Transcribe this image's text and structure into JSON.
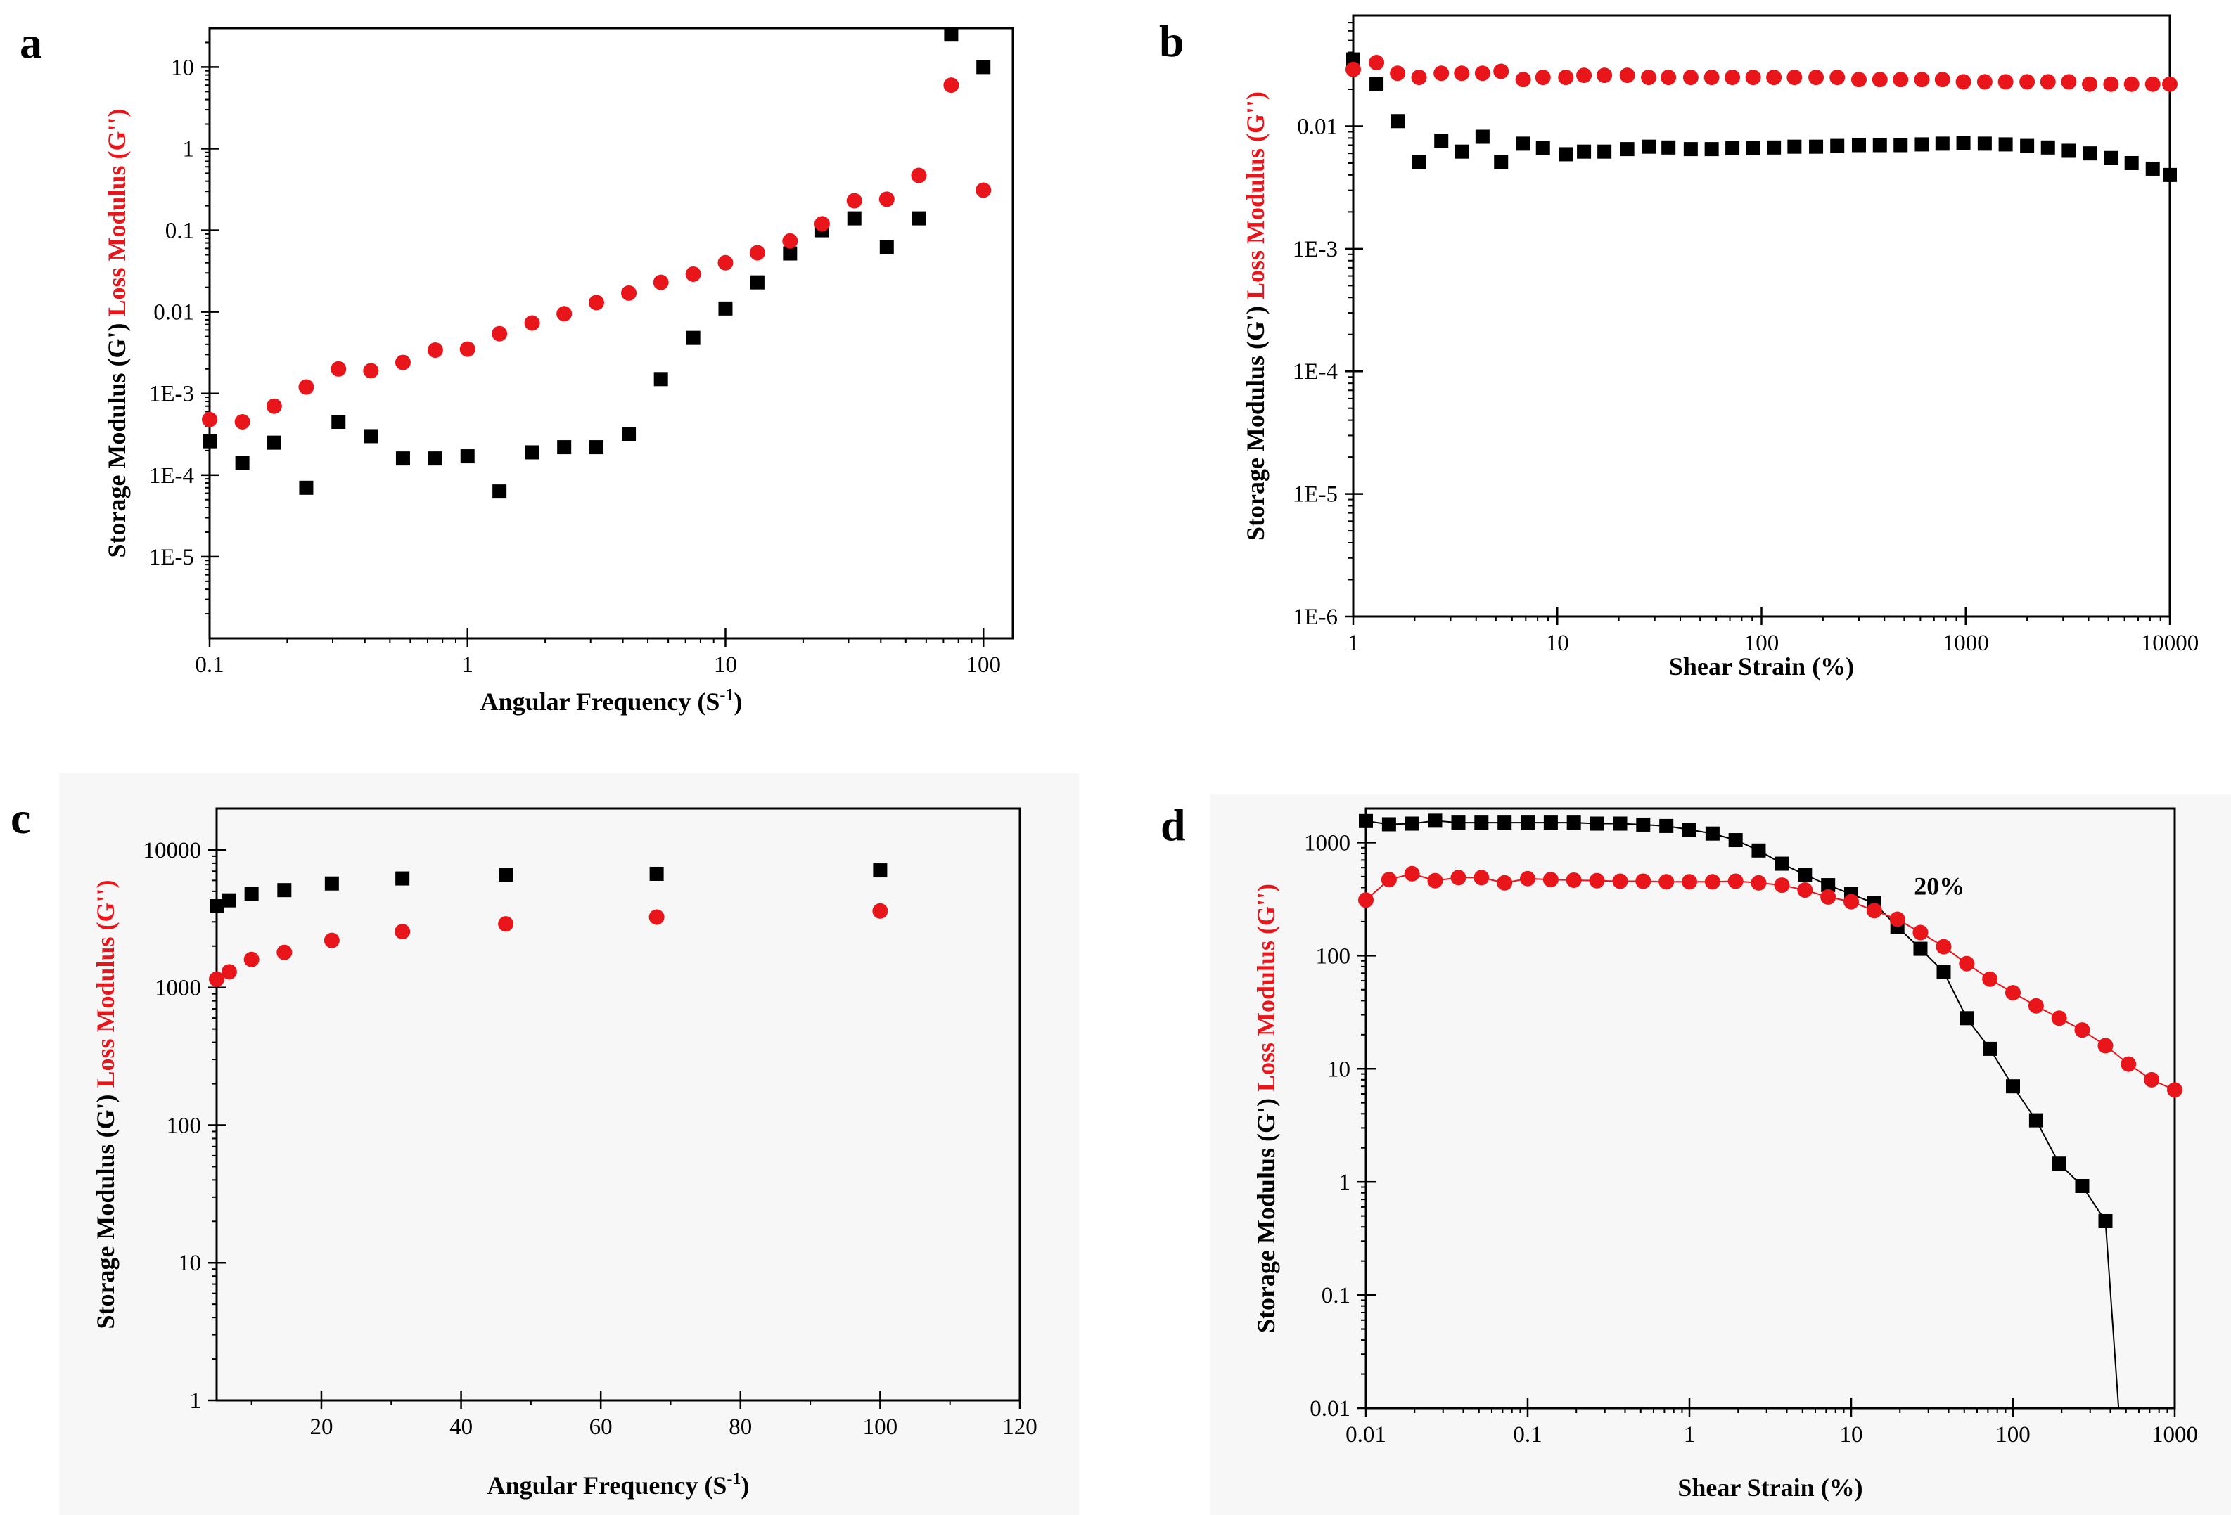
{
  "figure": {
    "colors": {
      "storage": "#000000",
      "loss": "#e8161b",
      "frame": "#000000",
      "background": "#ffffff",
      "shaded_background": "#f7f7f7"
    }
  },
  "chart_data": [
    {
      "panel": "a",
      "type": "scatter",
      "xscale": "log",
      "yscale": "log",
      "xlim": [
        0.1,
        130
      ],
      "ylim": [
        1e-06,
        30
      ],
      "xticks": [
        0.1,
        1,
        10,
        100
      ],
      "xtick_labels": [
        "0.1",
        "1",
        "10",
        "100"
      ],
      "yticks": [
        1e-05,
        0.0001,
        0.001,
        0.01,
        0.1,
        1,
        10
      ],
      "ytick_labels": [
        "1E-5",
        "1E-4",
        "1E-3",
        "0.01",
        "0.1",
        "1",
        "10"
      ],
      "xlabel": "Angular Frequency (S",
      "xlabel_sup": "-1",
      "xlabel_end": ")",
      "ylabel_parts": [
        "Storage Modulus (G')",
        " Loss Modulus (G'')"
      ],
      "lines": false,
      "series": [
        {
          "name": "Storage Modulus (G')",
          "marker": "square",
          "color": "#000000",
          "x": [
            0.1,
            0.134,
            0.178,
            0.237,
            0.316,
            0.422,
            0.562,
            0.75,
            1.0,
            1.33,
            1.78,
            2.37,
            3.16,
            4.22,
            5.62,
            7.5,
            10,
            13.3,
            17.8,
            23.7,
            31.6,
            42.2,
            56.2,
            75,
            100
          ],
          "y": [
            0.00026,
            0.00014,
            0.00025,
            7e-05,
            0.00045,
            0.0003,
            0.00016,
            0.00016,
            0.00017,
            6.3e-05,
            0.00019,
            0.00022,
            0.00022,
            0.00032,
            0.0015,
            0.0048,
            0.011,
            0.023,
            0.052,
            0.1,
            0.14,
            0.062,
            0.14,
            25,
            10
          ]
        },
        {
          "name": "Loss Modulus (G'')",
          "marker": "circle",
          "color": "#e8161b",
          "x": [
            0.1,
            0.134,
            0.178,
            0.237,
            0.316,
            0.422,
            0.562,
            0.75,
            1.0,
            1.33,
            1.78,
            2.37,
            3.16,
            4.22,
            5.62,
            7.5,
            10,
            13.3,
            17.8,
            23.7,
            31.6,
            42.2,
            56.2,
            75,
            100
          ],
          "y": [
            0.00048,
            0.00045,
            0.0007,
            0.0012,
            0.002,
            0.0019,
            0.0024,
            0.0034,
            0.0035,
            0.0054,
            0.0073,
            0.0095,
            0.013,
            0.017,
            0.023,
            0.029,
            0.04,
            0.053,
            0.074,
            0.12,
            0.23,
            0.24,
            0.47,
            6,
            0.31
          ]
        }
      ]
    },
    {
      "panel": "b",
      "type": "scatter",
      "xscale": "log",
      "yscale": "log",
      "xlim": [
        1,
        10000
      ],
      "ylim": [
        1e-06,
        0.08
      ],
      "xticks": [
        1,
        10,
        100,
        1000,
        10000
      ],
      "xtick_labels": [
        "1",
        "10",
        "100",
        "1000",
        "10000"
      ],
      "yticks": [
        1e-06,
        1e-05,
        0.0001,
        0.001,
        0.01
      ],
      "ytick_labels": [
        "1E-6",
        "1E-5",
        "1E-4",
        "1E-3",
        "0.01"
      ],
      "xlabel": "Shear Strain (%)",
      "ylabel_parts": [
        "Storage Modulus (G')",
        " Loss Modulus (G'')"
      ],
      "lines": false,
      "series": [
        {
          "name": "Storage Modulus (G')",
          "marker": "square",
          "color": "#000000",
          "x": [
            1,
            1.3,
            1.65,
            2.1,
            2.7,
            3.4,
            4.3,
            5.3,
            6.8,
            8.5,
            11,
            13.5,
            17,
            22,
            28,
            35,
            45,
            57,
            72,
            91,
            115,
            145,
            185,
            235,
            300,
            380,
            480,
            610,
            770,
            975,
            1240,
            1570,
            2000,
            2530,
            3200,
            4050,
            5150,
            6500,
            8250,
            10000
          ],
          "y": [
            0.035,
            0.022,
            0.011,
            0.0051,
            0.0076,
            0.0062,
            0.0082,
            0.0051,
            0.0072,
            0.0066,
            0.0059,
            0.0062,
            0.0062,
            0.0065,
            0.0068,
            0.0067,
            0.0065,
            0.0065,
            0.0066,
            0.0066,
            0.0067,
            0.0068,
            0.0068,
            0.0069,
            0.007,
            0.007,
            0.007,
            0.0071,
            0.0072,
            0.0073,
            0.0072,
            0.0071,
            0.0069,
            0.0067,
            0.0063,
            0.006,
            0.0055,
            0.005,
            0.0045,
            0.004
          ]
        },
        {
          "name": "Loss Modulus (G'')",
          "marker": "circle",
          "color": "#e8161b",
          "x": [
            1,
            1.3,
            1.65,
            2.1,
            2.7,
            3.4,
            4.3,
            5.3,
            6.8,
            8.5,
            11,
            13.5,
            17,
            22,
            28,
            35,
            45,
            57,
            72,
            91,
            115,
            145,
            185,
            235,
            300,
            380,
            480,
            610,
            770,
            975,
            1240,
            1570,
            2000,
            2530,
            3200,
            4050,
            5150,
            6500,
            8250,
            10000
          ],
          "y": [
            0.029,
            0.033,
            0.027,
            0.025,
            0.027,
            0.027,
            0.027,
            0.028,
            0.024,
            0.025,
            0.025,
            0.026,
            0.026,
            0.026,
            0.025,
            0.025,
            0.025,
            0.025,
            0.025,
            0.025,
            0.025,
            0.025,
            0.025,
            0.025,
            0.024,
            0.024,
            0.024,
            0.024,
            0.024,
            0.023,
            0.023,
            0.023,
            0.023,
            0.023,
            0.023,
            0.022,
            0.022,
            0.022,
            0.022,
            0.022
          ]
        }
      ]
    },
    {
      "panel": "c",
      "type": "scatter",
      "xscale": "linear",
      "yscale": "log",
      "xlim": [
        5,
        120
      ],
      "ylim": [
        1,
        20000
      ],
      "xticks": [
        20,
        40,
        60,
        80,
        100,
        120
      ],
      "xtick_labels": [
        "20",
        "40",
        "60",
        "80",
        "100",
        "120"
      ],
      "yticks": [
        1,
        10,
        100,
        1000,
        10000
      ],
      "ytick_labels": [
        "1",
        "10",
        "100",
        "1000",
        "10000"
      ],
      "xlabel": "Angular Frequency (S",
      "xlabel_sup": "-1",
      "xlabel_end": ")",
      "ylabel_parts": [
        "Storage Modulus (G')",
        " Loss Modulus (G'')"
      ],
      "lines": false,
      "series": [
        {
          "name": "Storage Modulus (G')",
          "marker": "square",
          "color": "#000000",
          "x": [
            5,
            6.8,
            10,
            14.7,
            21.5,
            31.6,
            46.4,
            68,
            100
          ],
          "y": [
            3900,
            4300,
            4800,
            5100,
            5700,
            6200,
            6600,
            6700,
            7100
          ]
        },
        {
          "name": "Loss Modulus (G'')",
          "marker": "circle",
          "color": "#e8161b",
          "x": [
            5,
            6.8,
            10,
            14.7,
            21.5,
            31.6,
            46.4,
            68,
            100
          ],
          "y": [
            1150,
            1300,
            1600,
            1800,
            2200,
            2550,
            2900,
            3250,
            3600
          ]
        }
      ]
    },
    {
      "panel": "d",
      "type": "line",
      "xscale": "log",
      "yscale": "log",
      "xlim": [
        0.01,
        1000
      ],
      "ylim": [
        0.01,
        2000
      ],
      "xticks": [
        0.01,
        0.1,
        1,
        10,
        100,
        1000
      ],
      "xtick_labels": [
        "0.01",
        "0.1",
        "1",
        "10",
        "100",
        "1000"
      ],
      "yticks": [
        0.01,
        0.1,
        1,
        10,
        100,
        1000
      ],
      "ytick_labels": [
        "0.01",
        "0.1",
        "1",
        "10",
        "100",
        "1000"
      ],
      "xlabel": "Shear Strain (%)",
      "ylabel_parts": [
        "Storage Modulus (G')",
        " Loss Modulus (G'')"
      ],
      "annotations": [
        {
          "text": "20%",
          "x": 20,
          "y": 260
        }
      ],
      "lines": true,
      "series": [
        {
          "name": "Storage Modulus (G')",
          "marker": "square",
          "color": "#000000",
          "x": [
            0.01,
            0.0139,
            0.0193,
            0.0268,
            0.0373,
            0.0518,
            0.072,
            0.1,
            0.139,
            0.193,
            0.268,
            0.373,
            0.518,
            0.72,
            1.0,
            1.39,
            1.93,
            2.68,
            3.73,
            5.18,
            7.2,
            10,
            13.9,
            19.3,
            26.8,
            37.3,
            51.8,
            72,
            100,
            139,
            193,
            268,
            373,
            450
          ],
          "y": [
            1550,
            1450,
            1470,
            1560,
            1500,
            1500,
            1500,
            1500,
            1500,
            1500,
            1470,
            1470,
            1440,
            1400,
            1300,
            1200,
            1050,
            850,
            650,
            520,
            420,
            350,
            290,
            180,
            115,
            72,
            28,
            15,
            7,
            3.5,
            1.45,
            0.92,
            0.45,
            0.01
          ]
        },
        {
          "name": "Loss Modulus (G'')",
          "marker": "circle",
          "color": "#e8161b",
          "x": [
            0.01,
            0.0139,
            0.0193,
            0.0268,
            0.0373,
            0.0518,
            0.072,
            0.1,
            0.139,
            0.193,
            0.268,
            0.373,
            0.518,
            0.72,
            1.0,
            1.39,
            1.93,
            2.68,
            3.73,
            5.18,
            7.2,
            10,
            13.9,
            19.3,
            26.8,
            37.3,
            51.8,
            72,
            100,
            139,
            193,
            268,
            373,
            518,
            720,
            1000
          ],
          "y": [
            310,
            470,
            530,
            460,
            490,
            490,
            440,
            480,
            470,
            465,
            460,
            455,
            455,
            450,
            450,
            450,
            455,
            440,
            420,
            380,
            330,
            300,
            250,
            210,
            160,
            120,
            85,
            62,
            47,
            36,
            28,
            22,
            16,
            11,
            8,
            6.5
          ]
        }
      ]
    }
  ]
}
